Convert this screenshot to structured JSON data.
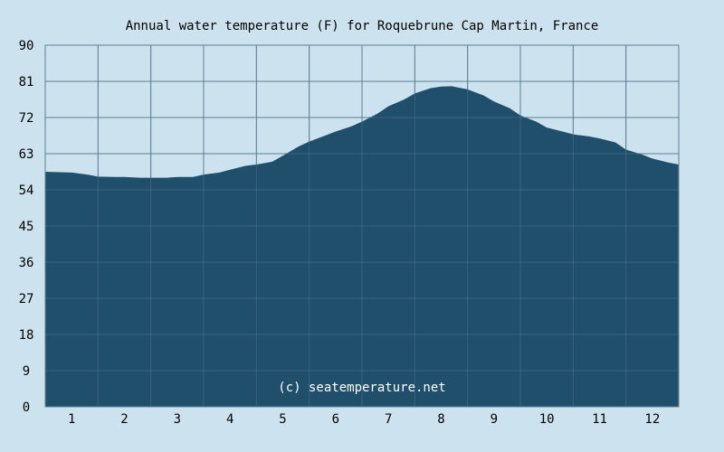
{
  "chart_data": {
    "type": "area",
    "title": "Annual water temperature (F) for Roquebrune Cap Martin, France",
    "xlabel": "",
    "ylabel": "",
    "x_ticks": [
      "1",
      "2",
      "3",
      "4",
      "5",
      "6",
      "7",
      "8",
      "9",
      "10",
      "11",
      "12"
    ],
    "y_ticks": [
      "0",
      "9",
      "18",
      "27",
      "36",
      "45",
      "54",
      "63",
      "72",
      "81",
      "90"
    ],
    "xlim": [
      0.5,
      12.5
    ],
    "ylim": [
      0,
      90
    ],
    "grid": true,
    "legend": "none",
    "series": [
      {
        "x": [
          0.5,
          1.0,
          1.3,
          1.5,
          1.8,
          2.0,
          2.3,
          2.5,
          2.8,
          3.0,
          3.3,
          3.5,
          3.8,
          4.0,
          4.3,
          4.5,
          4.8,
          5.0,
          5.3,
          5.5,
          5.8,
          6.0,
          6.3,
          6.5,
          6.8,
          7.0,
          7.3,
          7.5,
          7.8,
          8.0,
          8.2,
          8.5,
          8.8,
          9.0,
          9.3,
          9.5,
          9.8,
          10.0,
          10.3,
          10.5,
          10.8,
          11.0,
          11.3,
          11.5,
          11.8,
          12.0,
          12.3,
          12.5
        ],
        "values": [
          58.5,
          58.3,
          57.8,
          57.3,
          57.2,
          57.2,
          57.0,
          57.0,
          57.0,
          57.2,
          57.2,
          57.8,
          58.3,
          59.0,
          60.0,
          60.3,
          61.0,
          62.5,
          64.8,
          66.0,
          67.5,
          68.5,
          69.8,
          71.0,
          73.0,
          74.8,
          76.5,
          78.0,
          79.3,
          79.7,
          79.8,
          79.0,
          77.5,
          76.0,
          74.3,
          72.5,
          71.0,
          69.5,
          68.5,
          67.8,
          67.3,
          66.8,
          65.8,
          64.0,
          62.8,
          61.8,
          60.8,
          60.3
        ]
      }
    ],
    "annotation": "(c) seatemperature.net",
    "colors": {
      "background": "#cce3ef",
      "plot_background": "#cce3ef",
      "area_fill": "#1f4f6a",
      "grid": "#5c7f95",
      "watermark": "#ffffff"
    }
  }
}
